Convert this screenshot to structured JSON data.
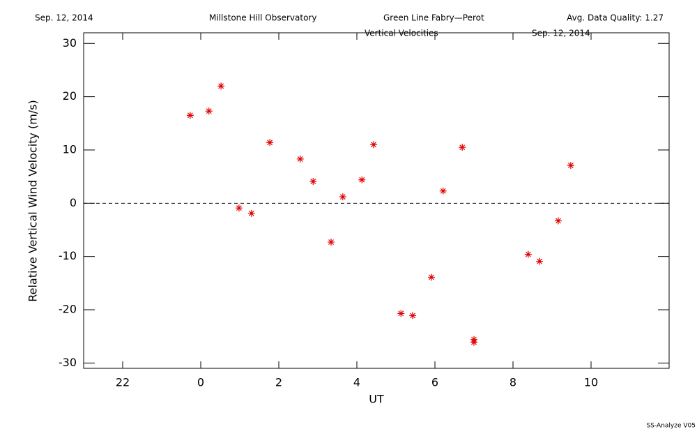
{
  "header": {
    "date": "Sep. 12, 2014",
    "observatory": "Millstone Hill Observatory",
    "instrument": "Green Line Fabry—Perot",
    "quality": "Avg. Data Quality: 1.27"
  },
  "chart_data": {
    "type": "scatter",
    "title": "Vertical Velocities",
    "subtitle": "Sep. 12, 2014",
    "x_label": "UT",
    "y_label": "Relative Vertical Wind Velocity (m/s)",
    "color": "#e00000",
    "reference_line": 0,
    "x": [
      -0.27,
      0.21,
      0.52,
      0.98,
      1.3,
      1.77,
      2.55,
      2.88,
      3.34,
      3.64,
      4.13,
      4.43,
      5.13,
      5.43,
      5.91,
      6.21,
      6.7,
      7.0,
      7.0,
      8.39,
      8.68,
      9.16,
      9.48
    ],
    "values": [
      16.5,
      17.3,
      22.0,
      -0.9,
      -1.9,
      11.4,
      8.3,
      4.1,
      -7.3,
      1.2,
      4.4,
      11.0,
      -20.7,
      -21.1,
      -13.9,
      2.3,
      10.5,
      -25.6,
      -26.1,
      -9.6,
      -10.9,
      -3.3,
      7.1
    ],
    "xlim": [
      -3,
      12
    ],
    "xticks": [
      {
        "value": -2,
        "label": "22"
      },
      0,
      2,
      4,
      6,
      8,
      10
    ],
    "ylim": [
      -31,
      32
    ],
    "yticks": [
      -30,
      -20,
      -10,
      0,
      10,
      20,
      30
    ]
  },
  "footer": "SS-Analyze V05"
}
